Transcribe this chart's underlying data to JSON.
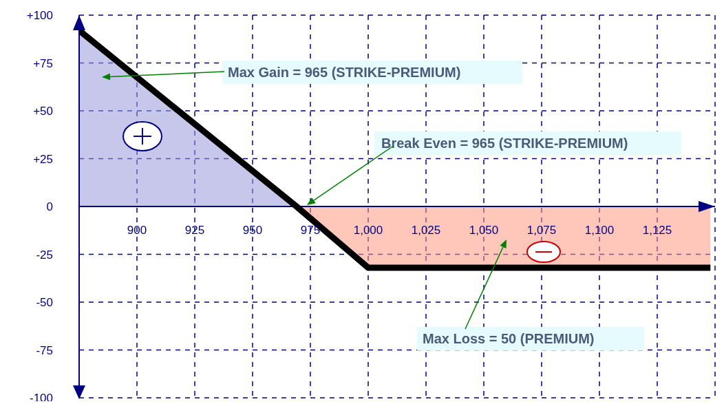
{
  "chart_data": {
    "type": "line",
    "x": [
      875,
      969,
      1000,
      1148
    ],
    "series": [
      {
        "type": "area",
        "color": "#9999dd",
        "values": [
          92,
          0,
          null,
          null
        ]
      },
      {
        "type": "area",
        "color": "#ff9980",
        "values": [
          null,
          0,
          -32,
          -32
        ]
      },
      {
        "color": "#000000",
        "values": [
          92,
          0,
          -32,
          -32
        ]
      }
    ],
    "xlim": [
      875,
      1150
    ],
    "xticks": [
      900,
      925,
      950,
      975,
      {
        "value": 1000,
        "label": "1,000"
      },
      {
        "value": 1025,
        "label": "1,025"
      },
      {
        "value": 1050,
        "label": "1,050"
      },
      {
        "value": 1075,
        "label": "1,075"
      },
      {
        "value": 1100,
        "label": "1,100"
      },
      {
        "value": 1125,
        "label": "1,125"
      }
    ],
    "ylim": [
      -100,
      100
    ],
    "yticks": [
      {
        "value": 100,
        "label": "+100"
      },
      {
        "value": 75,
        "label": "+75"
      },
      {
        "value": 50,
        "label": "+50"
      },
      {
        "value": 25,
        "label": "+25"
      },
      0,
      -25,
      -50,
      -75,
      -100
    ],
    "grid": true,
    "marker": "none",
    "annotations": [
      "Max Gain = 965 (STRIKE-PREMIUM)",
      "Break Even = 965 (STRIKE-PREMIUM)",
      "Max Loss = 50 (PREMIUM)"
    ]
  }
}
